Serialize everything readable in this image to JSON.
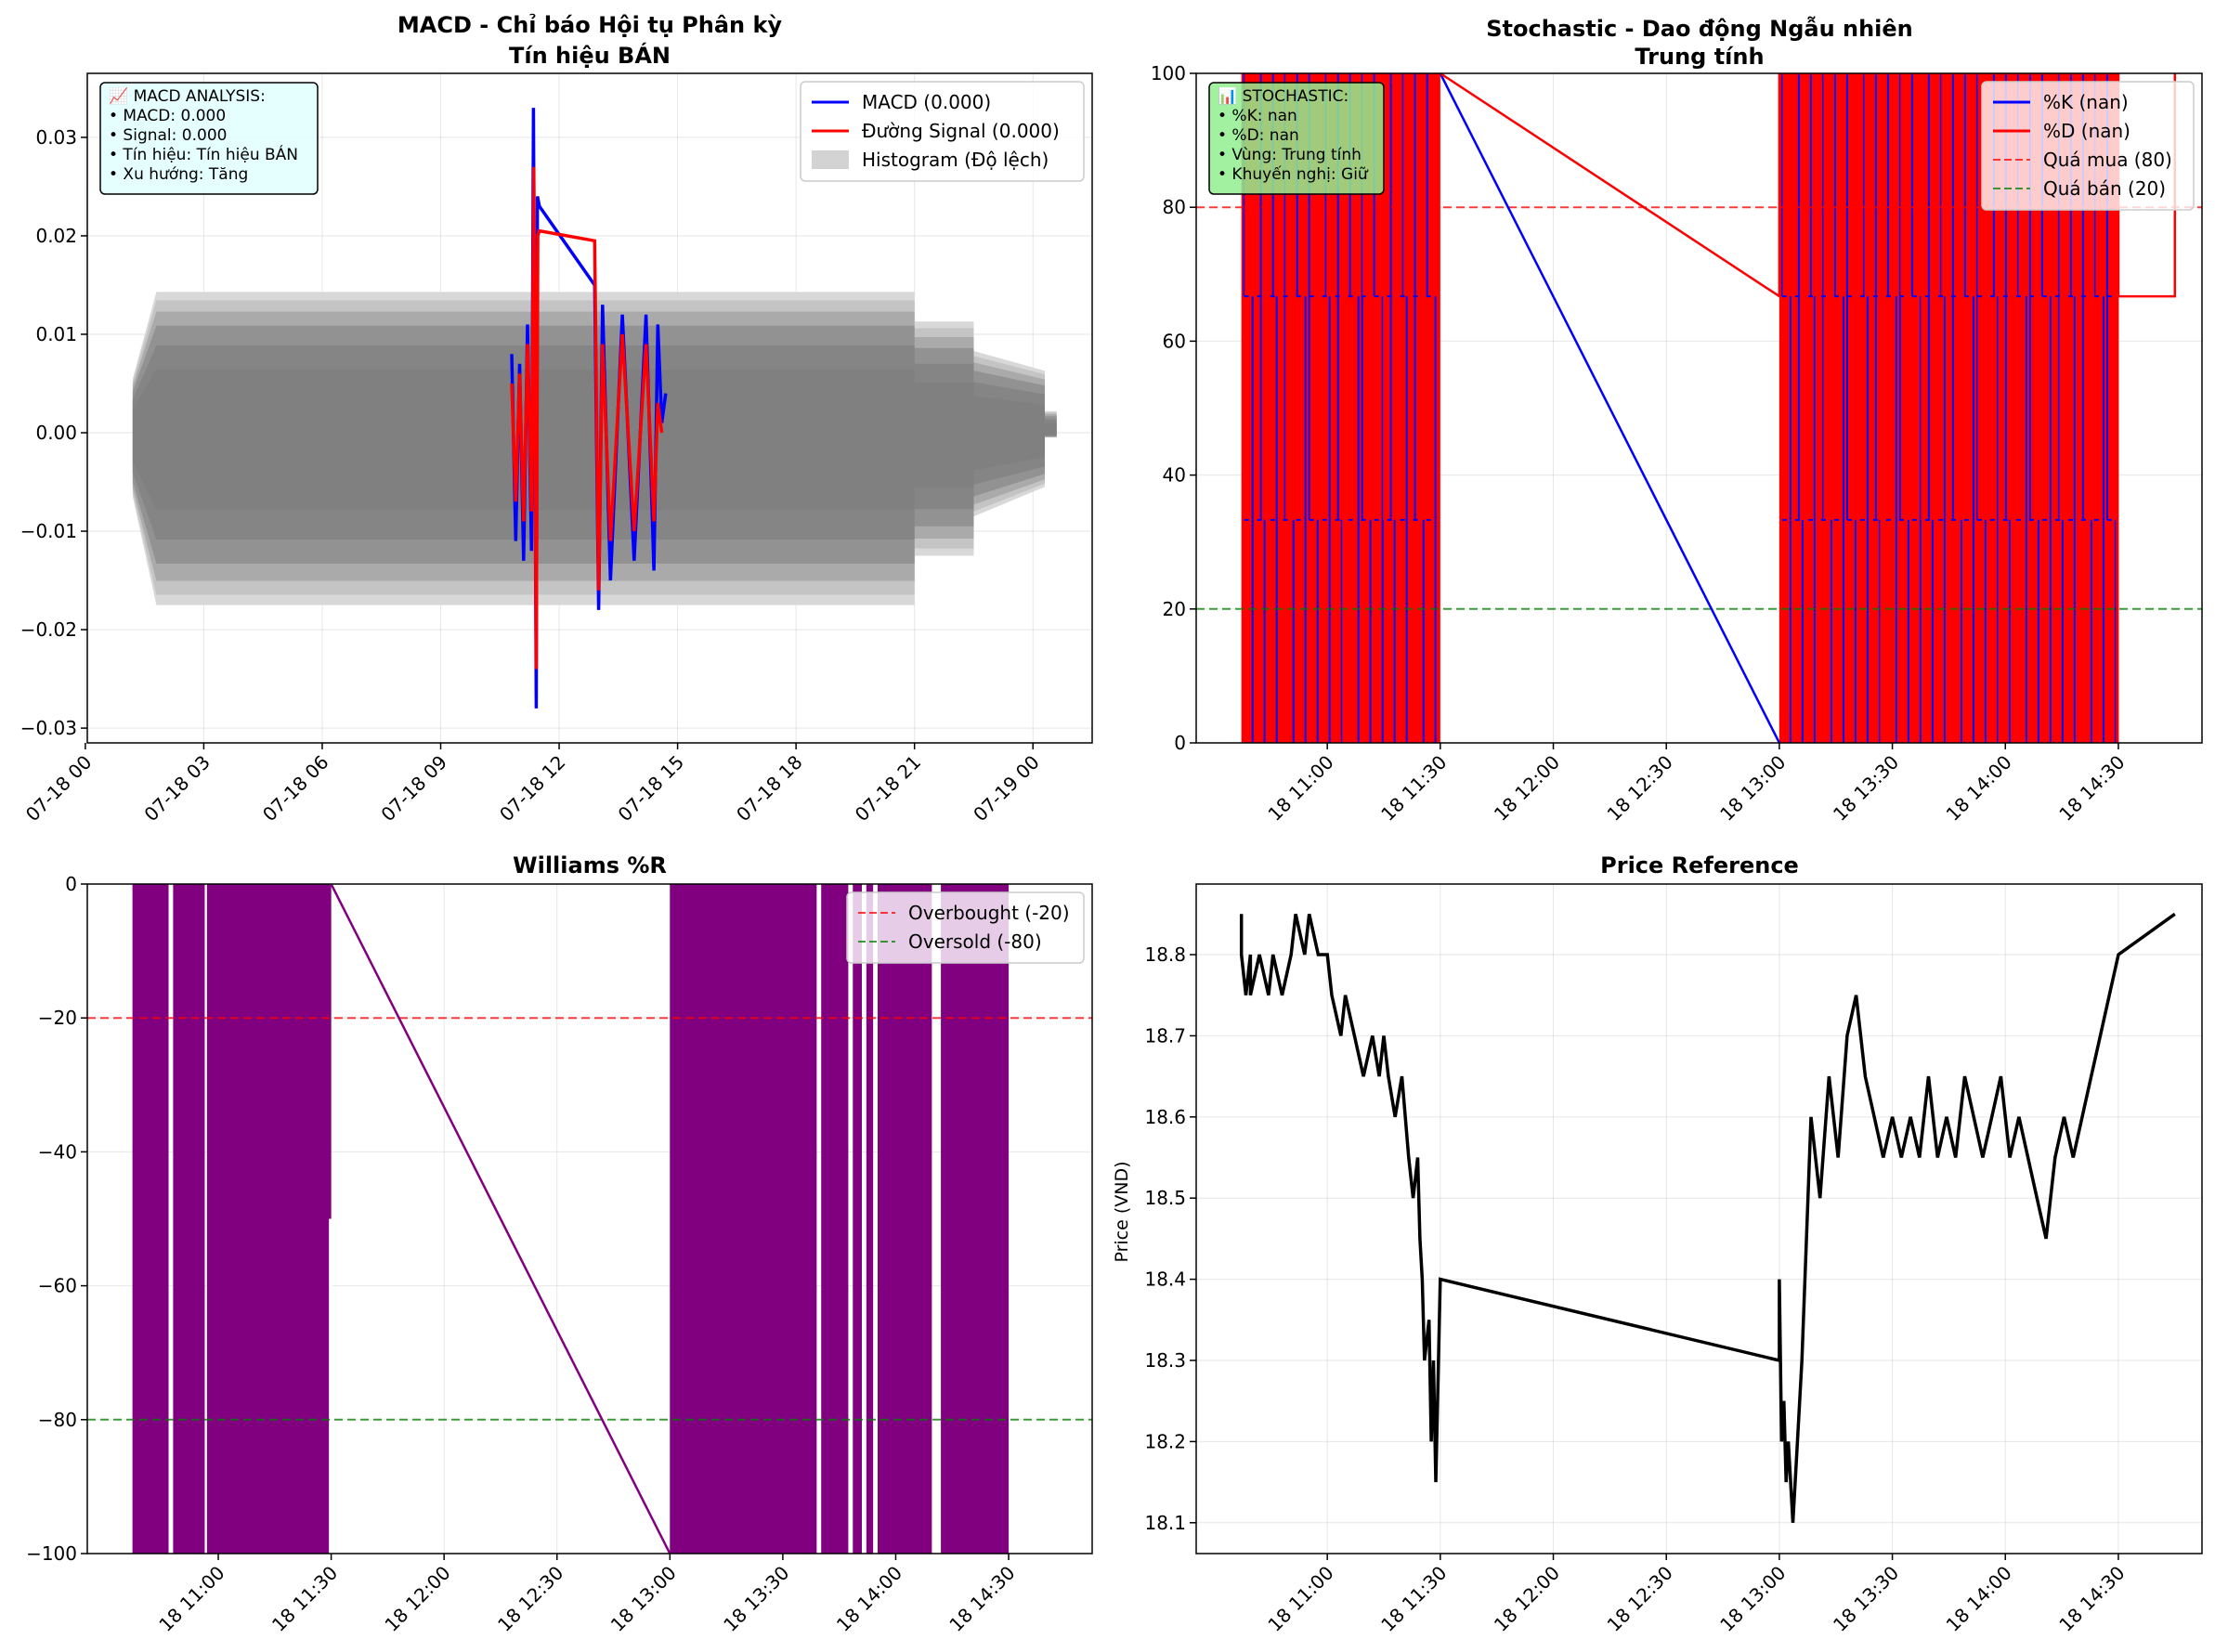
{
  "chart_data": [
    {
      "id": "macd",
      "type": "line",
      "title": "MACD - Chỉ báo Hội tụ Phân kỳ",
      "subtitle": "Tín hiệu BÁN",
      "ylim": [
        -0.0315,
        0.0365
      ],
      "yticks": [
        "0.03",
        "0.02",
        "0.01",
        "0.00",
        "−0.01",
        "−0.02",
        "−0.03"
      ],
      "ytick_values": [
        0.03,
        0.02,
        0.01,
        0.0,
        -0.01,
        -0.02,
        -0.03
      ],
      "xlim": [
        0.05,
        25.5
      ],
      "xticks": [
        "07-18 00",
        "07-18 03",
        "07-18 06",
        "07-18 09",
        "07-18 12",
        "07-18 15",
        "07-18 18",
        "07-18 21",
        "07-19 00"
      ],
      "xtick_values": [
        0,
        3,
        6,
        9,
        12,
        15,
        18,
        21,
        24
      ],
      "grid": true,
      "legend_position": "top-right",
      "legend": [
        {
          "label": "MACD (0.000)",
          "color": "#0000ff",
          "kind": "line"
        },
        {
          "label": "Đường Signal (0.000)",
          "color": "#ff0000",
          "kind": "line"
        },
        {
          "label": "Histogram (Độ lệch)",
          "color": "#d3d3d3",
          "kind": "patch"
        }
      ],
      "info_box": {
        "lines": [
          "📈 MACD ANALYSIS:",
          "• MACD: 0.000",
          "• Signal: 0.000",
          "• Tín hiệu: Tín hiệu BÁN",
          "• Xu hướng: Tăng"
        ],
        "bg": "#e0ffff"
      },
      "histogram_envelope": {
        "x": [
          1.2,
          1.2,
          1.8,
          1.8,
          21.0,
          21.0,
          22.5,
          22.5,
          24.3,
          24.3,
          24.6,
          24.6
        ],
        "upper": [
          0.0055,
          0.0055,
          0.0143,
          0.0143,
          0.0143,
          0.0113,
          0.0113,
          0.0083,
          0.0063,
          0.0022,
          0.0022,
          0.0
        ],
        "lower": [
          -0.0065,
          -0.0065,
          -0.0175,
          -0.0175,
          -0.0175,
          -0.0125,
          -0.0125,
          -0.0085,
          -0.0055,
          -0.0005,
          -0.0005,
          0.0
        ]
      },
      "series": [
        {
          "name": "MACD (0.000)",
          "color": "#0000ff",
          "x": [
            10.8,
            10.9,
            11.0,
            11.1,
            11.2,
            11.3,
            11.35,
            11.42,
            11.45,
            11.5,
            12.9,
            13.0,
            13.1,
            13.3,
            13.6,
            13.9,
            14.2,
            14.4,
            14.5,
            14.6,
            14.7
          ],
          "y": [
            0.008,
            -0.011,
            0.007,
            -0.013,
            0.011,
            -0.012,
            0.033,
            -0.028,
            0.024,
            0.023,
            0.015,
            -0.018,
            0.013,
            -0.015,
            0.012,
            -0.013,
            0.012,
            -0.014,
            0.011,
            0.001,
            0.004
          ]
        },
        {
          "name": "Đường Signal (0.000)",
          "color": "#ff0000",
          "x": [
            10.8,
            10.9,
            11.0,
            11.1,
            11.2,
            11.3,
            11.36,
            11.42,
            11.46,
            11.5,
            12.9,
            13.0,
            13.1,
            13.3,
            13.6,
            13.9,
            14.2,
            14.4,
            14.5,
            14.6
          ],
          "y": [
            0.005,
            -0.007,
            0.006,
            -0.009,
            0.009,
            -0.008,
            0.027,
            -0.024,
            0.02,
            0.0205,
            0.0195,
            -0.016,
            0.009,
            -0.011,
            0.01,
            -0.01,
            0.009,
            -0.009,
            0.003,
            0.0
          ]
        }
      ]
    },
    {
      "id": "stochastic",
      "type": "line",
      "title": "Stochastic - Dao động Ngẫu nhiên",
      "subtitle": "Trung tính",
      "ylim": [
        0,
        100
      ],
      "yticks": [
        "0",
        "20",
        "40",
        "60",
        "80",
        "100"
      ],
      "ytick_values": [
        0,
        20,
        40,
        60,
        80,
        100
      ],
      "xlim": [
        10.42,
        14.87
      ],
      "xticks": [
        "18 11:00",
        "18 11:30",
        "18 12:00",
        "18 12:30",
        "18 13:00",
        "18 13:30",
        "18 14:00",
        "18 14:30"
      ],
      "xtick_values": [
        11.0,
        11.5,
        12.0,
        12.5,
        13.0,
        13.5,
        14.0,
        14.5
      ],
      "grid": true,
      "legend_position": "top-right",
      "legend": [
        {
          "label": "%K (nan)",
          "color": "#0000ff",
          "kind": "line"
        },
        {
          "label": "%D (nan)",
          "color": "#ff0000",
          "kind": "line"
        },
        {
          "label": "Quá mua (80)",
          "color": "#ff0000",
          "kind": "dashed"
        },
        {
          "label": "Quá bán (20)",
          "color": "#008000",
          "kind": "dashed"
        }
      ],
      "reference_lines": [
        {
          "y": 80,
          "color": "#ff0000"
        },
        {
          "y": 20,
          "color": "#008000"
        }
      ],
      "info_box": {
        "lines": [
          "📊 STOCHASTIC:",
          "• %K: nan",
          "• %D: nan",
          "• Vùng: Trung tính",
          "• Khuyến nghị: Giữ"
        ],
        "bg": "#90ee90"
      },
      "dense_blocks": [
        {
          "x0": 10.62,
          "x1": 11.5
        },
        {
          "x0": 13.0,
          "x1": 14.5
        }
      ],
      "series": [
        {
          "name": "%K (nan)",
          "color": "#0000ff",
          "x": [
            11.5,
            13.0
          ],
          "y": [
            100,
            0
          ]
        },
        {
          "name": "%D (nan)",
          "color": "#ff0000",
          "x": [
            11.5,
            13.0,
            13.0,
            14.5,
            14.5,
            14.75,
            14.75
          ],
          "y": [
            100,
            66.7,
            100,
            100,
            66.7,
            66.7,
            100
          ]
        }
      ]
    },
    {
      "id": "williams",
      "type": "line",
      "title": "Williams %R",
      "ylim": [
        -100,
        0
      ],
      "yticks": [
        "0",
        "−20",
        "−40",
        "−60",
        "−80",
        "−100"
      ],
      "ytick_values": [
        0,
        -20,
        -40,
        -60,
        -80,
        -100
      ],
      "xlim": [
        10.42,
        14.87
      ],
      "xticks": [
        "18 11:00",
        "18 11:30",
        "18 12:00",
        "18 12:30",
        "18 13:00",
        "18 13:30",
        "18 14:00",
        "18 14:30"
      ],
      "xtick_values": [
        11.0,
        11.5,
        12.0,
        12.5,
        13.0,
        13.5,
        14.0,
        14.5
      ],
      "grid": true,
      "legend_position": "top-right",
      "legend": [
        {
          "label": "Overbought (-20)",
          "color": "#ff0000",
          "kind": "dashed"
        },
        {
          "label": "Oversold (-80)",
          "color": "#008000",
          "kind": "dashed"
        }
      ],
      "reference_lines": [
        {
          "y": -20,
          "color": "#ff0000"
        },
        {
          "y": -80,
          "color": "#008000"
        }
      ],
      "dense_blocks": [
        {
          "x0": 10.62,
          "x1": 10.78
        },
        {
          "x0": 10.8,
          "x1": 10.94
        },
        {
          "x0": 10.95,
          "x1": 11.5
        },
        {
          "x0": 13.0,
          "x1": 13.65
        },
        {
          "x0": 13.67,
          "x1": 13.79
        },
        {
          "x0": 13.81,
          "x1": 13.85
        },
        {
          "x0": 13.87,
          "x1": 13.9
        },
        {
          "x0": 13.92,
          "x1": 14.16
        },
        {
          "x0": 14.2,
          "x1": 14.5
        }
      ],
      "series": [
        {
          "name": "Williams %R",
          "color": "#800080",
          "x": [
            11.5,
            13.0
          ],
          "y": [
            0,
            -100
          ]
        }
      ]
    },
    {
      "id": "price",
      "type": "line",
      "title": "Price Reference",
      "ylabel": "Price (VND)",
      "ylim": [
        18.062,
        18.887
      ],
      "yticks": [
        "18.1",
        "18.2",
        "18.3",
        "18.4",
        "18.5",
        "18.6",
        "18.7",
        "18.8"
      ],
      "ytick_values": [
        18.1,
        18.2,
        18.3,
        18.4,
        18.5,
        18.6,
        18.7,
        18.8
      ],
      "xlim": [
        10.42,
        14.87
      ],
      "xticks": [
        "18 11:00",
        "18 11:30",
        "18 12:00",
        "18 12:30",
        "18 13:00",
        "18 13:30",
        "18 14:00",
        "18 14:30"
      ],
      "xtick_values": [
        11.0,
        11.5,
        12.0,
        12.5,
        13.0,
        13.5,
        14.0,
        14.5
      ],
      "grid": true,
      "series": [
        {
          "name": "Price",
          "color": "#000000",
          "x": [
            10.62,
            10.62,
            10.64,
            10.66,
            10.66,
            10.7,
            10.74,
            10.76,
            10.8,
            10.84,
            10.86,
            10.9,
            10.92,
            10.96,
            11.0,
            11.02,
            11.06,
            11.08,
            11.12,
            11.16,
            11.2,
            11.23,
            11.25,
            11.27,
            11.3,
            11.33,
            11.36,
            11.38,
            11.4,
            11.41,
            11.42,
            11.43,
            11.45,
            11.46,
            11.47,
            11.48,
            11.5,
            13.0,
            13.0,
            13.01,
            13.02,
            13.03,
            13.04,
            13.06,
            13.08,
            13.1,
            13.12,
            13.14,
            13.18,
            13.22,
            13.26,
            13.3,
            13.34,
            13.38,
            13.42,
            13.46,
            13.5,
            13.54,
            13.58,
            13.62,
            13.66,
            13.7,
            13.74,
            13.78,
            13.82,
            13.86,
            13.9,
            13.94,
            13.98,
            14.02,
            14.06,
            14.1,
            14.14,
            14.18,
            14.22,
            14.26,
            14.3,
            14.34,
            14.38,
            14.42,
            14.46,
            14.5,
            14.75
          ],
          "y": [
            18.85,
            18.8,
            18.75,
            18.8,
            18.75,
            18.8,
            18.75,
            18.8,
            18.75,
            18.8,
            18.85,
            18.8,
            18.85,
            18.8,
            18.8,
            18.75,
            18.7,
            18.75,
            18.7,
            18.65,
            18.7,
            18.65,
            18.7,
            18.65,
            18.6,
            18.65,
            18.55,
            18.5,
            18.55,
            18.45,
            18.4,
            18.3,
            18.35,
            18.2,
            18.3,
            18.15,
            18.4,
            18.3,
            18.4,
            18.2,
            18.25,
            18.15,
            18.2,
            18.1,
            18.2,
            18.3,
            18.45,
            18.6,
            18.5,
            18.65,
            18.55,
            18.7,
            18.75,
            18.65,
            18.6,
            18.55,
            18.6,
            18.55,
            18.6,
            18.55,
            18.65,
            18.55,
            18.6,
            18.55,
            18.65,
            18.6,
            18.55,
            18.6,
            18.65,
            18.55,
            18.6,
            18.55,
            18.5,
            18.45,
            18.55,
            18.6,
            18.55,
            18.6,
            18.65,
            18.7,
            18.75,
            18.8,
            18.85
          ]
        }
      ]
    }
  ]
}
